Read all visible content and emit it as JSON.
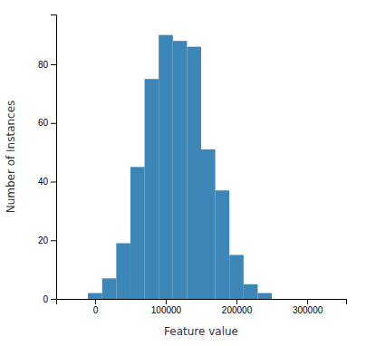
{
  "chart_data": {
    "type": "histogram",
    "xlabel": "Feature value",
    "ylabel": "Number of Instances",
    "bins": [
      -10000,
      10000,
      30000,
      50000,
      70000,
      90000,
      110000,
      130000,
      150000,
      170000,
      190000,
      210000,
      230000,
      250000
    ],
    "values": [
      2,
      7,
      19,
      45,
      75,
      90,
      88,
      86,
      51,
      37,
      15,
      5,
      2
    ],
    "color": "#3d87b8",
    "xlim": [
      -55000,
      355000
    ],
    "ylim": [
      0,
      97
    ],
    "xticks": [
      0,
      100000,
      200000,
      300000
    ],
    "yticks": [
      0,
      20,
      40,
      60,
      80
    ],
    "grid": false
  }
}
